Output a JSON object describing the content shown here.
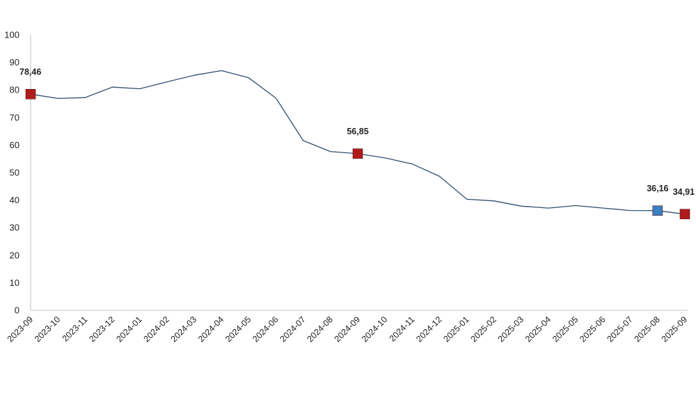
{
  "chart_data": {
    "type": "line",
    "title": "",
    "xlabel": "",
    "ylabel": "",
    "ylim": [
      0,
      100
    ],
    "yticks": [
      0,
      10,
      20,
      30,
      40,
      50,
      60,
      70,
      80,
      90,
      100
    ],
    "grid": false,
    "categories": [
      "2023-09",
      "2023-10",
      "2023-11",
      "2023-12",
      "2024-01",
      "2024-02",
      "2024-03",
      "2024-04",
      "2024-05",
      "2024-06",
      "2024-07",
      "2024-08",
      "2024-09",
      "2024-10",
      "2024-11",
      "2024-12",
      "2025-01",
      "2025-02",
      "2025-03",
      "2025-04",
      "2025-05",
      "2025-06",
      "2025-07",
      "2025-08",
      "2025-09"
    ],
    "series": [
      {
        "values": [
          78.46,
          76.9,
          77.2,
          81.0,
          80.4,
          82.9,
          85.3,
          87.0,
          84.4,
          77.0,
          61.6,
          57.6,
          56.85,
          55.3,
          53.1,
          48.6,
          40.3,
          39.7,
          37.8,
          37.1,
          38.0,
          37.1,
          36.2,
          36.16,
          34.91
        ],
        "color": "#2f4f6f"
      }
    ],
    "markers": [
      {
        "index": 0,
        "label": "78,46",
        "color": "#b01c1c"
      },
      {
        "index": 12,
        "label": "56,85",
        "color": "#b01c1c"
      },
      {
        "index": 23,
        "label": "36,16",
        "color": "#3a80c3"
      },
      {
        "index": 24,
        "label": "34,91",
        "color": "#b01c1c"
      }
    ]
  }
}
